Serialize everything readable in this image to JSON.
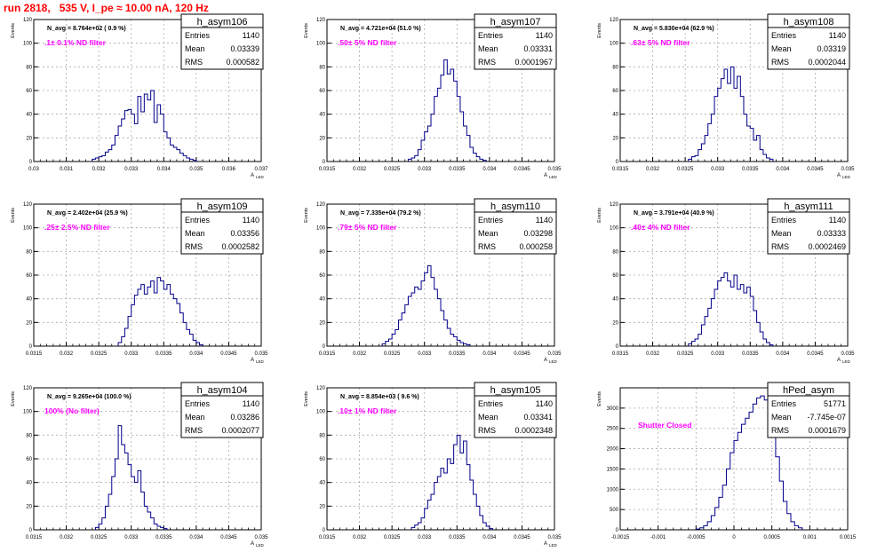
{
  "header": {
    "title": "run 2818,   535 V, I_pe ≈ 10.00 nA, 120 Hz"
  },
  "colors": {
    "title": "#ff0000",
    "hist_line": "#00008b",
    "annotation": "#ff00ff",
    "grid": "#aaaaaa",
    "frame": "#000000"
  },
  "chart_data": [
    {
      "type": "histogram",
      "name": "h_asym106",
      "entries": "1140",
      "mean": "0.03339",
      "rms": "0.000582",
      "n_avg": "N_avg = 8.764e+02 ( 0.9 %)",
      "note": ".1± 0.1% ND filter",
      "xlabel": "A_LED",
      "ylabel": "Events",
      "xlim": [
        0.03,
        0.037
      ],
      "ylim": [
        0,
        120
      ],
      "xticks": [
        "0.03",
        "0.031",
        "0.032",
        "0.033",
        "0.034",
        "0.035",
        "0.036",
        "0.037"
      ],
      "yticks": [
        "0",
        "20",
        "40",
        "60",
        "80",
        "100",
        "120"
      ],
      "bins": {
        "x0": 0.0318,
        "width": 0.0001,
        "counts": [
          2,
          3,
          4,
          5,
          8,
          10,
          14,
          22,
          30,
          36,
          43,
          44,
          40,
          32,
          55,
          42,
          57,
          52,
          60,
          33,
          48,
          40,
          25,
          20,
          14,
          12,
          10,
          7,
          5,
          3,
          2,
          1
        ]
      }
    },
    {
      "type": "histogram",
      "name": "h_asym107",
      "entries": "1140",
      "mean": "0.03331",
      "rms": "0.0001967",
      "n_avg": "N_avg = 4.721e+04 (51.0 %)",
      "note": ".50± 5% ND filter",
      "xlabel": "A_LED",
      "ylabel": "Events",
      "xlim": [
        0.0315,
        0.035
      ],
      "ylim": [
        0,
        120
      ],
      "xticks": [
        "0.0315",
        "0.032",
        "0.0325",
        "0.033",
        "0.0335",
        "0.034",
        "0.0345",
        "0.035"
      ],
      "yticks": [
        "0",
        "20",
        "40",
        "60",
        "80",
        "100",
        "120"
      ],
      "bins": {
        "x0": 0.03275,
        "width": 5e-05,
        "counts": [
          2,
          3,
          5,
          10,
          18,
          25,
          30,
          40,
          55,
          62,
          73,
          86,
          74,
          78,
          68,
          55,
          42,
          30,
          22,
          12,
          7,
          4,
          2,
          1
        ]
      }
    },
    {
      "type": "histogram",
      "name": "h_asym108",
      "entries": "1140",
      "mean": "0.03319",
      "rms": "0.0002044",
      "n_avg": "N_avg = 5.830e+04 (62.9 %)",
      "note": ".63± 5% ND filter",
      "xlabel": "A_LED",
      "ylabel": "Events",
      "xlim": [
        0.0315,
        0.035
      ],
      "ylim": [
        0,
        120
      ],
      "xticks": [
        "0.0315",
        "0.032",
        "0.0325",
        "0.033",
        "0.0335",
        "0.034",
        "0.0345",
        "0.035"
      ],
      "yticks": [
        "0",
        "20",
        "40",
        "60",
        "80",
        "100",
        "120"
      ],
      "bins": {
        "x0": 0.03255,
        "width": 5e-05,
        "counts": [
          2,
          4,
          5,
          10,
          15,
          22,
          32,
          40,
          55,
          62,
          70,
          78,
          66,
          80,
          62,
          72,
          55,
          40,
          30,
          28,
          18,
          22,
          10,
          6,
          3,
          2
        ]
      }
    },
    {
      "type": "histogram",
      "name": "h_asym109",
      "entries": "1140",
      "mean": "0.03356",
      "rms": "0.0002582",
      "n_avg": "N_avg = 2.402e+04 (25.9 %)",
      "note": ".25± 2.5% ND filter",
      "xlabel": "A_LED",
      "ylabel": "Events",
      "xlim": [
        0.0315,
        0.035
      ],
      "ylim": [
        0,
        120
      ],
      "xticks": [
        "0.0315",
        "0.032",
        "0.0325",
        "0.033",
        "0.0335",
        "0.034",
        "0.0345",
        "0.035"
      ],
      "yticks": [
        "0",
        "20",
        "40",
        "60",
        "80",
        "100",
        "120"
      ],
      "bins": {
        "x0": 0.0328,
        "width": 5e-05,
        "counts": [
          3,
          8,
          15,
          25,
          35,
          43,
          48,
          52,
          44,
          50,
          55,
          45,
          58,
          55,
          48,
          52,
          44,
          40,
          36,
          28,
          20,
          14,
          10,
          5,
          3,
          1
        ]
      }
    },
    {
      "type": "histogram",
      "name": "h_asym110",
      "entries": "1140",
      "mean": "0.03298",
      "rms": "0.000258",
      "n_avg": "N_avg = 7.335e+04 (79.2 %)",
      "note": ".79± 5% ND filter",
      "xlabel": "A_LED",
      "ylabel": "Events",
      "xlim": [
        0.0315,
        0.035
      ],
      "ylim": [
        0,
        120
      ],
      "xticks": [
        "0.0315",
        "0.032",
        "0.0325",
        "0.033",
        "0.0335",
        "0.034",
        "0.0345",
        "0.035"
      ],
      "yticks": [
        "0",
        "20",
        "40",
        "60",
        "80",
        "100",
        "120"
      ],
      "bins": {
        "x0": 0.03235,
        "width": 5e-05,
        "counts": [
          2,
          4,
          6,
          10,
          14,
          22,
          28,
          35,
          42,
          45,
          50,
          48,
          55,
          62,
          68,
          58,
          48,
          40,
          30,
          22,
          15,
          10,
          8,
          5,
          3,
          2,
          1
        ]
      }
    },
    {
      "type": "histogram",
      "name": "h_asym111",
      "entries": "1140",
      "mean": "0.03333",
      "rms": "0.0002469",
      "n_avg": "N_avg = 3.791e+04 (40.9 %)",
      "note": ".40± 4% ND filter",
      "xlabel": "A_LED",
      "ylabel": "Events",
      "xlim": [
        0.0315,
        0.035
      ],
      "ylim": [
        0,
        120
      ],
      "xticks": [
        "0.0315",
        "0.032",
        "0.0325",
        "0.033",
        "0.0335",
        "0.034",
        "0.0345",
        "0.035"
      ],
      "yticks": [
        "0",
        "20",
        "40",
        "60",
        "80",
        "100",
        "120"
      ],
      "bins": {
        "x0": 0.03255,
        "width": 5e-05,
        "counts": [
          2,
          4,
          6,
          10,
          18,
          25,
          32,
          40,
          48,
          55,
          58,
          62,
          55,
          50,
          60,
          48,
          52,
          45,
          50,
          42,
          30,
          20,
          12,
          6,
          3,
          1
        ]
      }
    },
    {
      "type": "histogram",
      "name": "h_asym104",
      "entries": "1140",
      "mean": "0.03286",
      "rms": "0.0002077",
      "n_avg": "N_avg = 9.265e+04 (100.0 %)",
      "note": "100% (No filter)",
      "xlabel": "A_LED",
      "ylabel": "Events",
      "xlim": [
        0.0315,
        0.035
      ],
      "ylim": [
        0,
        120
      ],
      "xticks": [
        "0.0315",
        "0.032",
        "0.0325",
        "0.033",
        "0.0335",
        "0.034",
        "0.0345",
        "0.035"
      ],
      "yticks": [
        "0",
        "20",
        "40",
        "60",
        "80",
        "100",
        "120"
      ],
      "bins": {
        "x0": 0.03245,
        "width": 5e-05,
        "counts": [
          2,
          5,
          10,
          20,
          30,
          45,
          60,
          88,
          72,
          65,
          55,
          45,
          40,
          50,
          32,
          20,
          15,
          10,
          5,
          3,
          2,
          1
        ]
      }
    },
    {
      "type": "histogram",
      "name": "h_asym105",
      "entries": "1140",
      "mean": "0.03341",
      "rms": "0.0002348",
      "n_avg": "N_avg = 8.854e+03 ( 9.6 %)",
      "note": ".10± 1% ND filter",
      "xlabel": "A_LED",
      "ylabel": "Events",
      "xlim": [
        0.0315,
        0.035
      ],
      "ylim": [
        0,
        120
      ],
      "xticks": [
        "0.0315",
        "0.032",
        "0.0325",
        "0.033",
        "0.0335",
        "0.034",
        "0.0345",
        "0.035"
      ],
      "yticks": [
        "0",
        "20",
        "40",
        "60",
        "80",
        "100",
        "120"
      ],
      "bins": {
        "x0": 0.0328,
        "width": 5e-05,
        "counts": [
          2,
          4,
          6,
          10,
          18,
          25,
          30,
          40,
          45,
          52,
          48,
          60,
          56,
          72,
          80,
          65,
          75,
          55,
          42,
          30,
          20,
          12,
          6,
          3,
          1
        ]
      }
    },
    {
      "type": "histogram",
      "name": "hPed_asym",
      "entries": "51771",
      "mean": "-7.745e-07",
      "rms": "0.0001679",
      "n_avg": "",
      "note": "Shutter Closed",
      "xlabel": "",
      "ylabel": "Events",
      "xlim": [
        -0.0015,
        0.0015
      ],
      "ylim": [
        0,
        3500
      ],
      "xticks": [
        "-0.0015",
        "-0.001",
        "-0.0005",
        "0",
        "0.0005",
        "0.001",
        "0.0015"
      ],
      "yticks": [
        "0",
        "500",
        "1000",
        "1500",
        "2000",
        "2500",
        "3000"
      ],
      "bins": {
        "x0": -0.0005,
        "width": 5e-05,
        "counts": [
          20,
          50,
          100,
          200,
          350,
          550,
          800,
          1100,
          1500,
          1900,
          2200,
          2400,
          2600,
          2750,
          2900,
          3100,
          3250,
          3300,
          3200,
          3000,
          2500,
          1800,
          1200,
          700,
          400,
          200,
          100,
          50
        ]
      }
    }
  ]
}
